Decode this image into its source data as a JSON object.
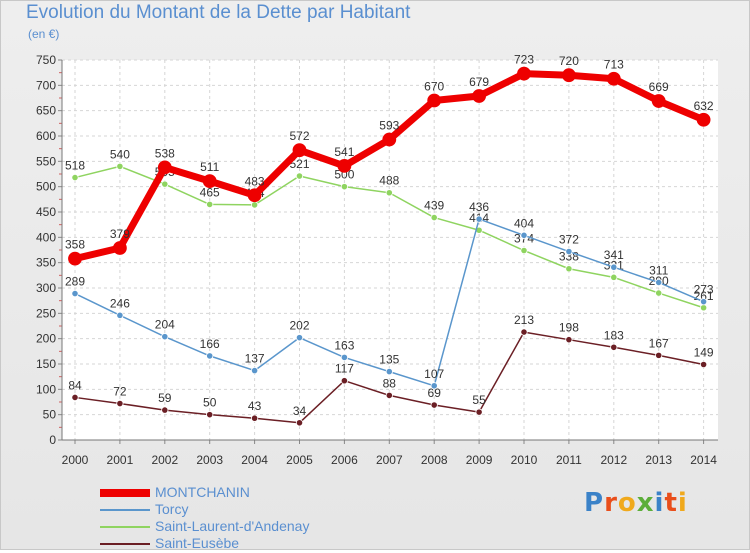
{
  "chart_data": {
    "type": "line",
    "title": "Evolution du Montant de la Dette par Habitant",
    "unit_label": "(en €)",
    "x": [
      "2000",
      "2001",
      "2002",
      "2003",
      "2004",
      "2005",
      "2006",
      "2007",
      "2008",
      "2009",
      "2010",
      "2011",
      "2012",
      "2013",
      "2014"
    ],
    "ylim": [
      0,
      750
    ],
    "yticks": [
      0,
      50,
      100,
      150,
      200,
      250,
      300,
      350,
      400,
      450,
      500,
      550,
      600,
      650,
      700,
      750
    ],
    "grid": true,
    "legend_position": "bottom-left",
    "series": [
      {
        "name": "MONTCHANIN",
        "color": "#ee0000",
        "values": [
          358,
          379,
          538,
          511,
          483,
          572,
          541,
          593,
          670,
          679,
          723,
          720,
          713,
          669,
          632
        ]
      },
      {
        "name": "Torcy",
        "color": "#5a96cc",
        "values": [
          289,
          246,
          204,
          166,
          137,
          202,
          163,
          135,
          107,
          436,
          404,
          372,
          341,
          311,
          273
        ]
      },
      {
        "name": "Saint-Laurent-d'Andenay",
        "color": "#8fd460",
        "values": [
          518,
          540,
          505,
          465,
          464,
          521,
          500,
          488,
          439,
          414,
          374,
          338,
          321,
          290,
          261
        ]
      },
      {
        "name": "Saint-Eusèbe",
        "color": "#6b1f25",
        "values": [
          84,
          72,
          59,
          50,
          43,
          34,
          117,
          88,
          69,
          55,
          213,
          198,
          183,
          167,
          149
        ]
      }
    ]
  },
  "brand": {
    "letters": [
      "P",
      "r",
      "o",
      "x",
      "i",
      "t",
      "i"
    ]
  }
}
